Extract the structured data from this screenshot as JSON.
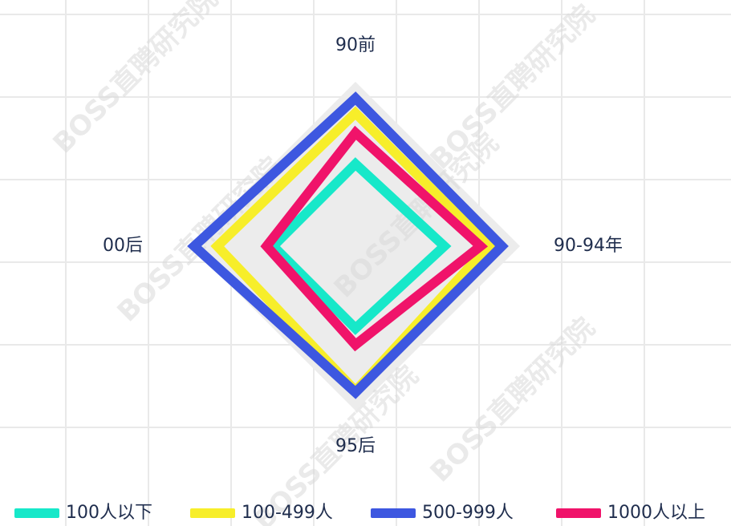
{
  "chart_data": {
    "type": "radar",
    "watermark": "BOSS直聘研究院",
    "categories": [
      "90前",
      "90-94年",
      "95后",
      "00后"
    ],
    "ylim": [
      0,
      100
    ],
    "series": [
      {
        "name": "100人以下",
        "color": "#17e8c9",
        "values": [
          50,
          54,
          50,
          50
        ]
      },
      {
        "name": "100-499人",
        "color": "#f7ee2a",
        "values": [
          81,
          81,
          88,
          84
        ]
      },
      {
        "name": "500-999人",
        "color": "#3d57e0",
        "values": [
          90,
          89,
          89,
          98
        ]
      },
      {
        "name": "1000人以上",
        "color": "#f0136a",
        "values": [
          69,
          76,
          60,
          54
        ]
      }
    ],
    "legend": "bottom"
  }
}
